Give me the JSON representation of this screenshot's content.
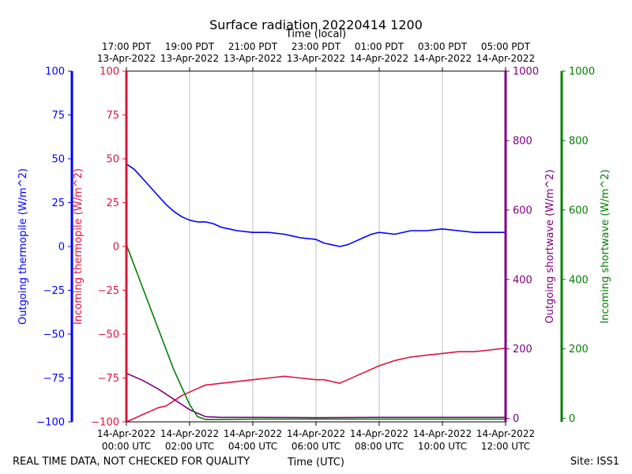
{
  "title": "Surface radiation 20220414 1200",
  "footer": {
    "left_note": "REAL TIME DATA, NOT CHECKED FOR QUALITY",
    "xlabel_bottom": "Time (UTC)",
    "site": "Site: ISS1"
  },
  "colors": {
    "outgoing_thermopile": "#0000ff",
    "incoming_thermopile": "#dc143c",
    "outgoing_shortwave": "#800080",
    "incoming_shortwave": "#008000"
  },
  "chart_data": {
    "type": "line",
    "title": "Surface radiation 20220414 1200",
    "xlabel": "Time (UTC)",
    "xlabel_top": "Time (local)",
    "x_unit": "hours after 14-Apr-2022 00:00 UTC",
    "xlim": [
      0,
      12
    ],
    "grid": "vertical",
    "bottom_ticks": [
      {
        "x": 0,
        "line1": "14-Apr-2022",
        "line2": "00:00 UTC"
      },
      {
        "x": 2,
        "line1": "14-Apr-2022",
        "line2": "02:00 UTC"
      },
      {
        "x": 4,
        "line1": "14-Apr-2022",
        "line2": "04:00 UTC"
      },
      {
        "x": 6,
        "line1": "14-Apr-2022",
        "line2": "06:00 UTC"
      },
      {
        "x": 8,
        "line1": "14-Apr-2022",
        "line2": "08:00 UTC"
      },
      {
        "x": 10,
        "line1": "14-Apr-2022",
        "line2": "10:00 UTC"
      },
      {
        "x": 12,
        "line1": "14-Apr-2022",
        "line2": "12:00 UTC"
      }
    ],
    "top_ticks": [
      {
        "x": 0,
        "line1": "17:00 PDT",
        "line2": "13-Apr-2022"
      },
      {
        "x": 2,
        "line1": "19:00 PDT",
        "line2": "13-Apr-2022"
      },
      {
        "x": 4,
        "line1": "21:00 PDT",
        "line2": "13-Apr-2022"
      },
      {
        "x": 6,
        "line1": "23:00 PDT",
        "line2": "13-Apr-2022"
      },
      {
        "x": 8,
        "line1": "01:00 PDT",
        "line2": "14-Apr-2022"
      },
      {
        "x": 10,
        "line1": "03:00 PDT",
        "line2": "14-Apr-2022"
      },
      {
        "x": 12,
        "line1": "05:00 PDT",
        "line2": "14-Apr-2022"
      }
    ],
    "axes": [
      {
        "id": "out_thermo",
        "label": "Outgoing thermopile (W/m^2)",
        "color": "#0000ff",
        "side": "left",
        "ylim": [
          -100,
          100
        ],
        "ticks": [
          -100,
          -75,
          -50,
          -25,
          0,
          25,
          50,
          75,
          100
        ]
      },
      {
        "id": "in_thermo",
        "label": "Incoming thermopile (W/m^2)",
        "color": "#dc143c",
        "side": "left",
        "ylim": [
          -100,
          100
        ],
        "ticks": [
          -100,
          -75,
          -50,
          -25,
          0,
          25,
          50,
          75,
          100
        ]
      },
      {
        "id": "out_sw",
        "label": "Outgoing shortwave (W/m^2)",
        "color": "#800080",
        "side": "right",
        "ylim": [
          -10,
          1000
        ],
        "ticks": [
          0,
          200,
          400,
          600,
          800,
          1000
        ]
      },
      {
        "id": "in_sw",
        "label": "Incoming shortwave (W/m^2)",
        "color": "#008000",
        "side": "right",
        "ylim": [
          -10,
          1000
        ],
        "ticks": [
          0,
          200,
          400,
          600,
          800,
          1000
        ]
      }
    ],
    "series": [
      {
        "axis": "out_thermo",
        "color": "#0000ff",
        "x": [
          0,
          0.25,
          0.5,
          0.75,
          1,
          1.25,
          1.5,
          1.75,
          2,
          2.25,
          2.5,
          2.75,
          3,
          3.25,
          3.5,
          4,
          4.5,
          5,
          5.25,
          5.5,
          6,
          6.25,
          6.5,
          6.75,
          7,
          7.25,
          7.5,
          7.75,
          8,
          8.5,
          9,
          9.5,
          10,
          10.5,
          11,
          11.5,
          12
        ],
        "y": [
          47,
          44,
          39,
          34,
          29,
          24,
          20,
          17,
          15,
          14,
          14,
          13,
          11,
          10,
          9,
          8,
          8,
          7,
          6,
          5,
          4,
          2,
          1,
          0,
          1,
          3,
          5,
          7,
          8,
          7,
          9,
          9,
          10,
          9,
          8,
          8,
          8
        ]
      },
      {
        "axis": "in_thermo",
        "color": "#dc143c",
        "x": [
          0,
          0.25,
          0.5,
          0.75,
          1,
          1.25,
          1.5,
          1.75,
          2,
          2.25,
          2.5,
          3,
          3.5,
          4,
          4.5,
          5,
          5.5,
          6,
          6.25,
          6.5,
          6.75,
          7,
          7.25,
          7.5,
          8,
          8.5,
          9,
          9.5,
          10,
          10.5,
          11,
          11.5,
          12
        ],
        "y": [
          -100,
          -98,
          -96,
          -94,
          -92,
          -91,
          -88,
          -85,
          -83,
          -81,
          -79,
          -78,
          -77,
          -76,
          -75,
          -74,
          -75,
          -76,
          -76,
          -77,
          -78,
          -76,
          -74,
          -72,
          -68,
          -65,
          -63,
          -62,
          -61,
          -60,
          -60,
          -59,
          -58
        ]
      },
      {
        "axis": "out_sw",
        "color": "#800080",
        "x": [
          0,
          0.5,
          1,
          1.5,
          2,
          2.5,
          3,
          4,
          6,
          8,
          10,
          12
        ],
        "y": [
          130,
          110,
          85,
          55,
          25,
          5,
          3,
          3,
          2,
          3,
          3,
          3
        ]
      },
      {
        "axis": "in_sw",
        "color": "#008000",
        "x": [
          0,
          0.5,
          1,
          1.5,
          2,
          2.25,
          2.5,
          3,
          4,
          6,
          8,
          10,
          12
        ],
        "y": [
          500,
          380,
          260,
          140,
          40,
          5,
          -3,
          -3,
          -2,
          -2,
          -2,
          -2,
          -2
        ]
      }
    ]
  }
}
